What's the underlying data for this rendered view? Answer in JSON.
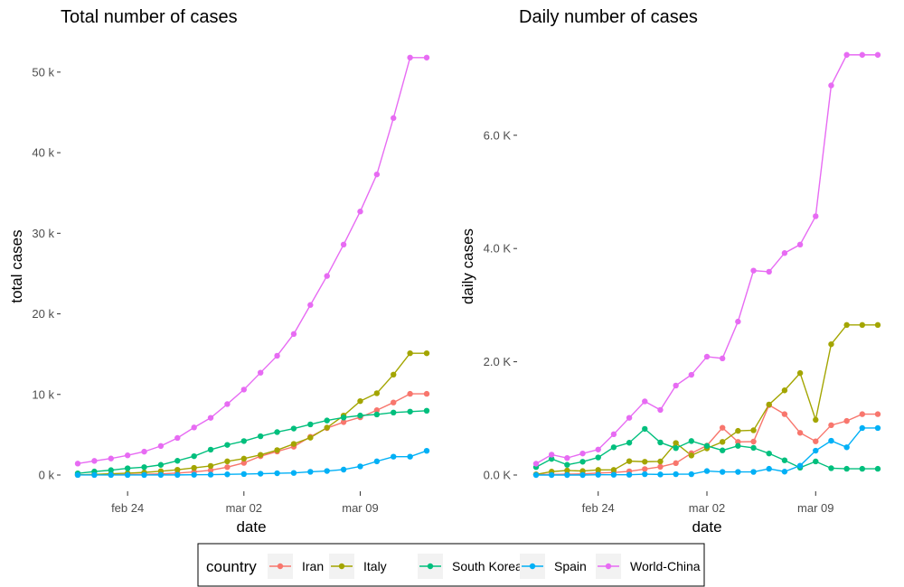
{
  "chart_data": [
    {
      "type": "line",
      "title": "Total number of cases",
      "xlabel": "date",
      "ylabel": "total cases",
      "x": [
        "feb 21",
        "feb 22",
        "feb 23",
        "feb 24",
        "feb 25",
        "feb 26",
        "feb 27",
        "feb 28",
        "feb 29",
        "mar 01",
        "mar 02",
        "mar 03",
        "mar 04",
        "mar 05",
        "mar 06",
        "mar 07",
        "mar 08",
        "mar 09",
        "mar 10",
        "mar 11",
        "mar 12",
        "mar 13"
      ],
      "x_ticks": [
        {
          "index": 3,
          "label": "feb 24"
        },
        {
          "index": 10,
          "label": "mar 02"
        },
        {
          "index": 17,
          "label": "mar 09"
        }
      ],
      "ylim": [
        0,
        52000
      ],
      "y_ticks": [
        {
          "value": 0,
          "label": "0 k"
        },
        {
          "value": 10000,
          "label": "10 k"
        },
        {
          "value": 20000,
          "label": "20 k"
        },
        {
          "value": 30000,
          "label": "30 k"
        },
        {
          "value": 40000,
          "label": "40 k"
        },
        {
          "value": 50000,
          "label": "50 k"
        }
      ],
      "series": [
        {
          "name": "Iran",
          "color": "#F8766D",
          "values": [
            18,
            28,
            43,
            61,
            95,
            139,
            245,
            388,
            593,
            978,
            1501,
            2336,
            2922,
            3513,
            4747,
            5823,
            6566,
            7161,
            8042,
            9000,
            10075,
            10075
          ]
        },
        {
          "name": "Italy",
          "color": "#A3A500",
          "values": [
            20,
            79,
            157,
            229,
            323,
            470,
            655,
            889,
            1128,
            1694,
            2036,
            2502,
            3089,
            3858,
            4636,
            5883,
            7375,
            9172,
            10149,
            12462,
            15113,
            15113
          ]
        },
        {
          "name": "South Korea",
          "color": "#00BF7D",
          "values": [
            204,
            433,
            602,
            833,
            977,
            1261,
            1766,
            2337,
            3150,
            3736,
            4212,
            4812,
            5328,
            5766,
            6284,
            6767,
            7134,
            7382,
            7513,
            7755,
            7869,
            7979
          ]
        },
        {
          "name": "Spain",
          "color": "#00B0F6",
          "values": [
            2,
            2,
            2,
            2,
            6,
            13,
            15,
            32,
            45,
            84,
            120,
            165,
            222,
            259,
            400,
            500,
            673,
            1073,
            1695,
            2277,
            2277,
            3004
          ]
        },
        {
          "name": "World-China",
          "color": "#E76BF3",
          "values": [
            1420,
            1750,
            2050,
            2440,
            2900,
            3600,
            4600,
            5900,
            7100,
            8800,
            10600,
            12700,
            14800,
            17500,
            21100,
            24700,
            28600,
            32700,
            37300,
            44300,
            51800,
            51800
          ]
        }
      ]
    },
    {
      "type": "line",
      "title": "Daily number of cases",
      "xlabel": "date",
      "ylabel": "daily cases",
      "x": [
        "feb 20",
        "feb 21",
        "feb 22",
        "feb 23",
        "feb 24",
        "feb 25",
        "feb 26",
        "feb 27",
        "feb 28",
        "feb 29",
        "mar 01",
        "mar 02",
        "mar 03",
        "mar 04",
        "mar 05",
        "mar 06",
        "mar 07",
        "mar 08",
        "mar 09",
        "mar 10",
        "mar 11",
        "mar 12",
        "mar 13"
      ],
      "x_ticks": [
        {
          "index": 4,
          "label": "feb 24"
        },
        {
          "index": 11,
          "label": "mar 02"
        },
        {
          "index": 18,
          "label": "mar 09"
        }
      ],
      "ylim": [
        0,
        7400
      ],
      "y_ticks": [
        {
          "value": 0,
          "label": "0.0 K"
        },
        {
          "value": 2000,
          "label": "2.0 K"
        },
        {
          "value": 4000,
          "label": "4.0 K"
        },
        {
          "value": 6000,
          "label": "6.0 K"
        }
      ],
      "series": [
        {
          "name": "Iran",
          "color": "#F8766D",
          "values": [
            10,
            10,
            15,
            20,
            35,
            45,
            65,
            105,
            145,
            210,
            385,
            520,
            835,
            585,
            590,
            1235,
            1075,
            745,
            595,
            880,
            955,
            1075,
            1075
          ]
        },
        {
          "name": "Italy",
          "color": "#A3A500",
          "values": [
            10,
            60,
            80,
            70,
            90,
            90,
            245,
            235,
            240,
            565,
            345,
            470,
            585,
            780,
            790,
            1245,
            1495,
            1800,
            975,
            2310,
            2650,
            2650,
            2650
          ]
        },
        {
          "name": "South Korea",
          "color": "#00BF7D",
          "values": [
            140,
            285,
            180,
            235,
            310,
            490,
            570,
            815,
            575,
            475,
            600,
            515,
            435,
            515,
            480,
            380,
            260,
            130,
            240,
            120,
            110,
            110,
            110
          ]
        },
        {
          "name": "Spain",
          "color": "#00B0F6",
          "values": [
            0,
            0,
            0,
            0,
            5,
            5,
            5,
            15,
            10,
            15,
            15,
            70,
            55,
            55,
            55,
            110,
            60,
            165,
            430,
            605,
            490,
            830,
            830
          ]
        },
        {
          "name": "World-China",
          "color": "#E76BF3",
          "values": [
            200,
            360,
            300,
            380,
            450,
            720,
            1010,
            1300,
            1150,
            1580,
            1770,
            2090,
            2060,
            2710,
            3610,
            3590,
            3920,
            4070,
            4570,
            6880,
            7420,
            7420,
            7420
          ]
        }
      ]
    }
  ],
  "legend": {
    "title": "country",
    "items": [
      {
        "label": "Iran",
        "color": "#F8766D"
      },
      {
        "label": "Italy",
        "color": "#A3A500"
      },
      {
        "label": "South Korea",
        "color": "#00BF7D"
      },
      {
        "label": "Spain",
        "color": "#00B0F6"
      },
      {
        "label": "World-China",
        "color": "#E76BF3"
      }
    ]
  }
}
